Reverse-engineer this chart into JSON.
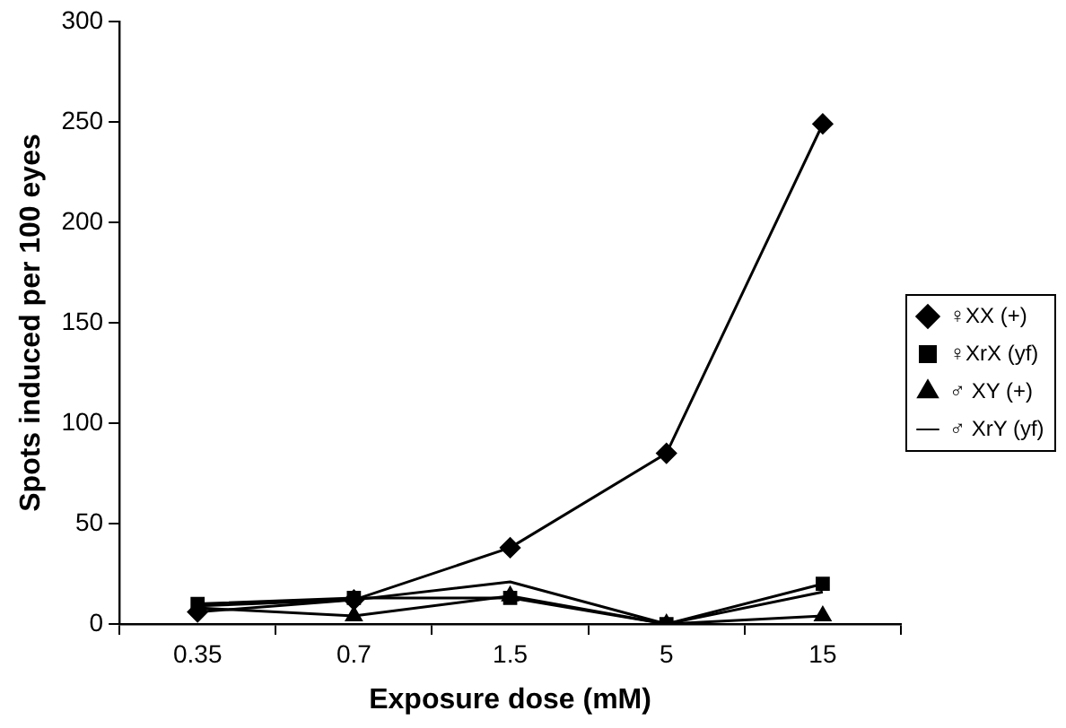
{
  "chart_data": {
    "type": "line",
    "xlabel": "Exposure dose (mM)",
    "ylabel": "Spots induced per 100 eyes",
    "categories": [
      "0.35",
      "0.7",
      "1.5",
      "5",
      "15"
    ],
    "series": [
      {
        "name": "♀XX (+)",
        "color": "#000000",
        "marker": "diamond",
        "values": [
          6,
          12,
          38,
          85,
          249
        ]
      },
      {
        "name": "♀XrX (yf)",
        "color": "#000000",
        "marker": "square",
        "values": [
          10,
          13,
          13,
          0,
          20
        ]
      },
      {
        "name": "♂ XY (+)",
        "color": "#000000",
        "marker": "triangle",
        "values": [
          8,
          4,
          14,
          0,
          4
        ]
      },
      {
        "name": "♂ XrY (yf)",
        "color": "#000000",
        "marker": "none",
        "values": [
          9,
          12,
          21,
          0,
          16
        ]
      }
    ],
    "ylim": [
      0,
      300
    ],
    "yticks": [
      0,
      50,
      100,
      150,
      200,
      250,
      300
    ],
    "grid": false,
    "legend": "right",
    "line_style": "solid"
  }
}
